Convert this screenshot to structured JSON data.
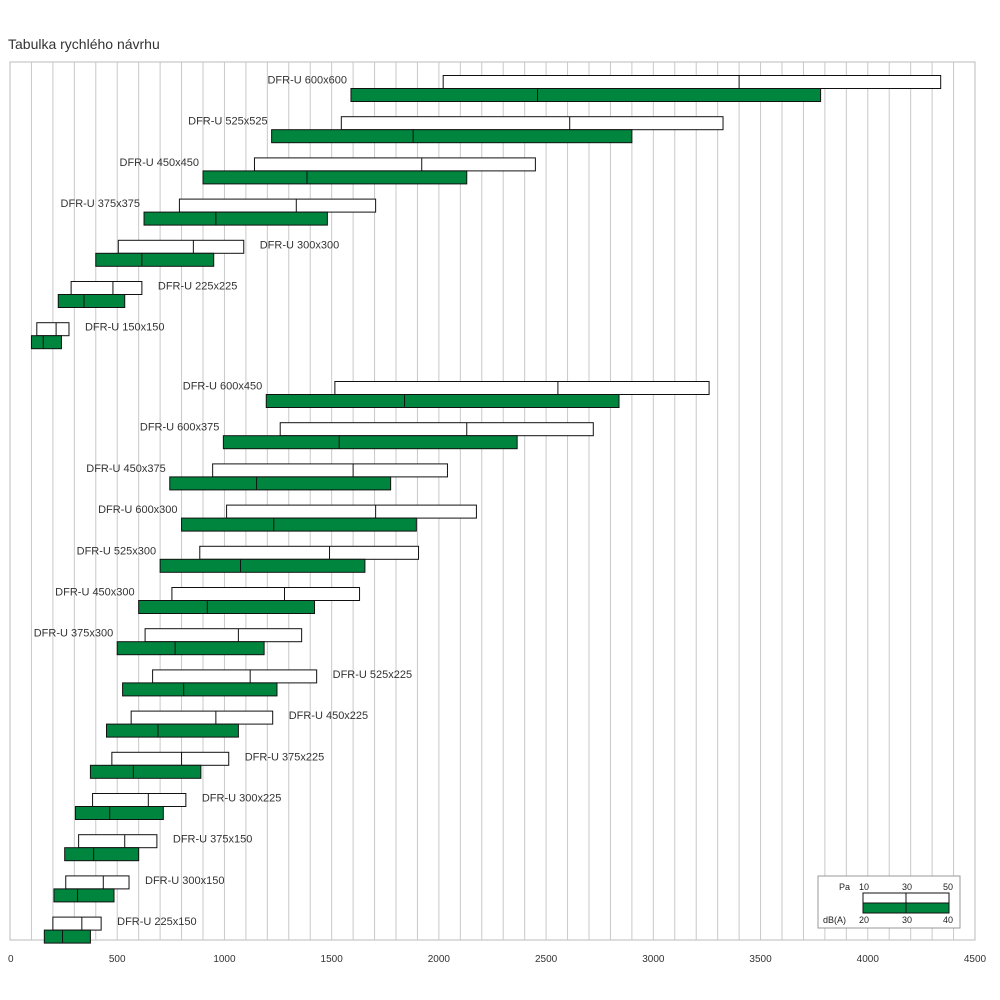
{
  "title": "Tabulka rychlého návrhu",
  "chart_data": {
    "type": "bar",
    "title": "Tabulka rychlého návrhu",
    "xlabel": "",
    "ylabel": "",
    "xlim": [
      0,
      4500
    ],
    "x_ticks": [
      0,
      500,
      1000,
      1500,
      2000,
      2500,
      3000,
      3500,
      4000,
      4500
    ],
    "grid": true,
    "legend_position": "bottom-right",
    "colors": {
      "pressure_fill": "#ffffff",
      "sound_fill": "#00853f",
      "outline": "#111111",
      "grid": "#c8c8c8"
    },
    "legend": {
      "pa_label": "Pa",
      "pa_ticks": [
        "10",
        "30",
        "50"
      ],
      "db_label": "dB(A)",
      "db_ticks": [
        "20",
        "30",
        "40"
      ]
    },
    "series": [
      {
        "name": "Pa",
        "range_fields": [
          "pa_start",
          "pa_mid",
          "pa_end"
        ]
      },
      {
        "name": "dB(A)",
        "range_fields": [
          "db_start",
          "db_mid",
          "db_end"
        ]
      }
    ],
    "rows": [
      {
        "label": "DFR-U 600x600",
        "label_side": "left",
        "pa_start": 2020,
        "pa_mid": 3400,
        "pa_end": 4340,
        "db_start": 1590,
        "db_mid": 2460,
        "db_end": 3780
      },
      {
        "label": "DFR-U 525x525",
        "label_side": "left",
        "pa_start": 1545,
        "pa_mid": 2610,
        "pa_end": 3325,
        "db_start": 1220,
        "db_mid": 1880,
        "db_end": 2900
      },
      {
        "label": "DFR-U 450x450",
        "label_side": "left",
        "pa_start": 1140,
        "pa_mid": 1920,
        "pa_end": 2450,
        "db_start": 900,
        "db_mid": 1385,
        "db_end": 2130
      },
      {
        "label": "DFR-U 375x375",
        "label_side": "left",
        "pa_start": 790,
        "pa_mid": 1335,
        "pa_end": 1705,
        "db_start": 625,
        "db_mid": 960,
        "db_end": 1480
      },
      {
        "label": "DFR-U 300x300",
        "label_side": "right",
        "pa_start": 505,
        "pa_mid": 855,
        "pa_end": 1090,
        "db_start": 400,
        "db_mid": 615,
        "db_end": 950
      },
      {
        "label": "DFR-U 225x225",
        "label_side": "right",
        "pa_start": 285,
        "pa_mid": 480,
        "pa_end": 615,
        "db_start": 225,
        "db_mid": 345,
        "db_end": 535
      },
      {
        "label": "DFR-U 150x150",
        "label_side": "right",
        "pa_start": 125,
        "pa_mid": 215,
        "pa_end": 275,
        "db_start": 100,
        "db_mid": 155,
        "db_end": 240
      },
      {
        "label": "DFR-U 600x450",
        "label_side": "left",
        "pa_start": 1515,
        "pa_mid": 2555,
        "pa_end": 3260,
        "db_start": 1195,
        "db_mid": 1840,
        "db_end": 2840
      },
      {
        "label": "DFR-U 600x375",
        "label_side": "left",
        "pa_start": 1260,
        "pa_mid": 2130,
        "pa_end": 2720,
        "db_start": 995,
        "db_mid": 1535,
        "db_end": 2365
      },
      {
        "label": "DFR-U 450x375",
        "label_side": "left",
        "pa_start": 945,
        "pa_mid": 1600,
        "pa_end": 2040,
        "db_start": 745,
        "db_mid": 1150,
        "db_end": 1775
      },
      {
        "label": "DFR-U 600x300",
        "label_side": "left",
        "pa_start": 1010,
        "pa_mid": 1705,
        "pa_end": 2175,
        "db_start": 800,
        "db_mid": 1230,
        "db_end": 1895
      },
      {
        "label": "DFR-U 525x300",
        "label_side": "left",
        "pa_start": 885,
        "pa_mid": 1490,
        "pa_end": 1905,
        "db_start": 700,
        "db_mid": 1075,
        "db_end": 1655
      },
      {
        "label": "DFR-U 450x300",
        "label_side": "left",
        "pa_start": 755,
        "pa_mid": 1280,
        "pa_end": 1630,
        "db_start": 600,
        "db_mid": 920,
        "db_end": 1420
      },
      {
        "label": "DFR-U 375x300",
        "label_side": "left",
        "pa_start": 630,
        "pa_mid": 1065,
        "pa_end": 1360,
        "db_start": 500,
        "db_mid": 770,
        "db_end": 1185
      },
      {
        "label": "DFR-U 525x225",
        "label_side": "right",
        "pa_start": 665,
        "pa_mid": 1120,
        "pa_end": 1430,
        "db_start": 525,
        "db_mid": 810,
        "db_end": 1245
      },
      {
        "label": "DFR-U 450x225",
        "label_side": "right",
        "pa_start": 565,
        "pa_mid": 960,
        "pa_end": 1225,
        "db_start": 450,
        "db_mid": 690,
        "db_end": 1065
      },
      {
        "label": "DFR-U 375x225",
        "label_side": "right",
        "pa_start": 475,
        "pa_mid": 800,
        "pa_end": 1020,
        "db_start": 375,
        "db_mid": 575,
        "db_end": 890
      },
      {
        "label": "DFR-U 300x225",
        "label_side": "right",
        "pa_start": 385,
        "pa_mid": 645,
        "pa_end": 820,
        "db_start": 305,
        "db_mid": 465,
        "db_end": 715
      },
      {
        "label": "DFR-U 375x150",
        "label_side": "right",
        "pa_start": 320,
        "pa_mid": 535,
        "pa_end": 685,
        "db_start": 255,
        "db_mid": 390,
        "db_end": 600
      },
      {
        "label": "DFR-U 300x150",
        "label_side": "right",
        "pa_start": 260,
        "pa_mid": 435,
        "pa_end": 555,
        "db_start": 205,
        "db_mid": 315,
        "db_end": 485
      },
      {
        "label": "DFR-U 225x150",
        "label_side": "right",
        "pa_start": 200,
        "pa_mid": 335,
        "pa_end": 425,
        "db_start": 160,
        "db_mid": 245,
        "db_end": 375
      }
    ]
  }
}
